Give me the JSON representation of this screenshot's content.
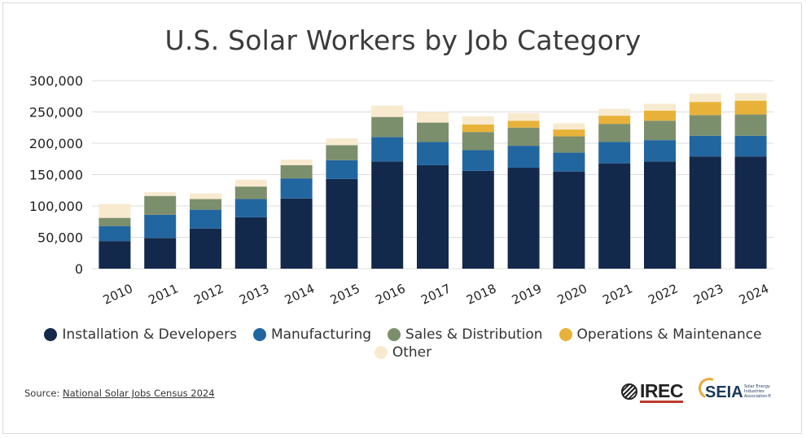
{
  "title": "U.S. Solar Workers by Job Category",
  "source": {
    "prefix": "Source: ",
    "link_text": "National Solar Jobs Census 2024"
  },
  "logos": {
    "irec": "IREC",
    "seia": "SEIA",
    "seia_tagline": "Solar Energy Industries Association®"
  },
  "colors": {
    "installation": "#13294b",
    "manufacturing": "#2266a0",
    "sales": "#7c8f6d",
    "operations": "#e8b23a",
    "other": "#f8eacf"
  },
  "legend": [
    {
      "label": "Installation & Developers",
      "color": "#13294b"
    },
    {
      "label": "Manufacturing",
      "color": "#2266a0"
    },
    {
      "label": "Sales & Distribution",
      "color": "#7c8f6d"
    },
    {
      "label": "Operations & Maintenance",
      "color": "#e8b23a"
    },
    {
      "label": "Other",
      "color": "#f8eacf"
    }
  ],
  "chart_data": {
    "type": "bar",
    "stacked": true,
    "title": "U.S. Solar Workers by Job Category",
    "categories": [
      "2010",
      "2011",
      "2012",
      "2013",
      "2014",
      "2015",
      "2016",
      "2017",
      "2018",
      "2019",
      "2020",
      "2021",
      "2022",
      "2023",
      "2024"
    ],
    "ylim": [
      0,
      300000
    ],
    "yticks": [
      "0",
      "50,000",
      "100,000",
      "150,000",
      "200,000",
      "250,000",
      "300,000"
    ],
    "series": [
      {
        "name": "Installation & Developers",
        "values": [
          44000,
          49000,
          64000,
          82000,
          112000,
          143000,
          171000,
          165000,
          156000,
          161000,
          155000,
          168000,
          171000,
          179000,
          179000
        ]
      },
      {
        "name": "Manufacturing",
        "values": [
          24000,
          37000,
          30000,
          29000,
          32000,
          30000,
          39000,
          37000,
          33000,
          35000,
          30000,
          34000,
          34000,
          33000,
          33000
        ]
      },
      {
        "name": "Sales & Distribution",
        "values": [
          13000,
          30000,
          17000,
          20000,
          21000,
          24000,
          32000,
          31000,
          29000,
          29000,
          26000,
          29000,
          31000,
          33000,
          34000
        ]
      },
      {
        "name": "Operations & Maintenance",
        "values": [
          0,
          0,
          0,
          0,
          0,
          0,
          0,
          0,
          12000,
          11000,
          11000,
          13000,
          16000,
          21000,
          22000
        ]
      },
      {
        "name": "Other",
        "values": [
          22000,
          6000,
          9000,
          11000,
          9000,
          11000,
          18000,
          17000,
          13000,
          12000,
          10000,
          11000,
          11000,
          13000,
          12000
        ]
      }
    ],
    "legend_position": "bottom",
    "grid": true
  }
}
